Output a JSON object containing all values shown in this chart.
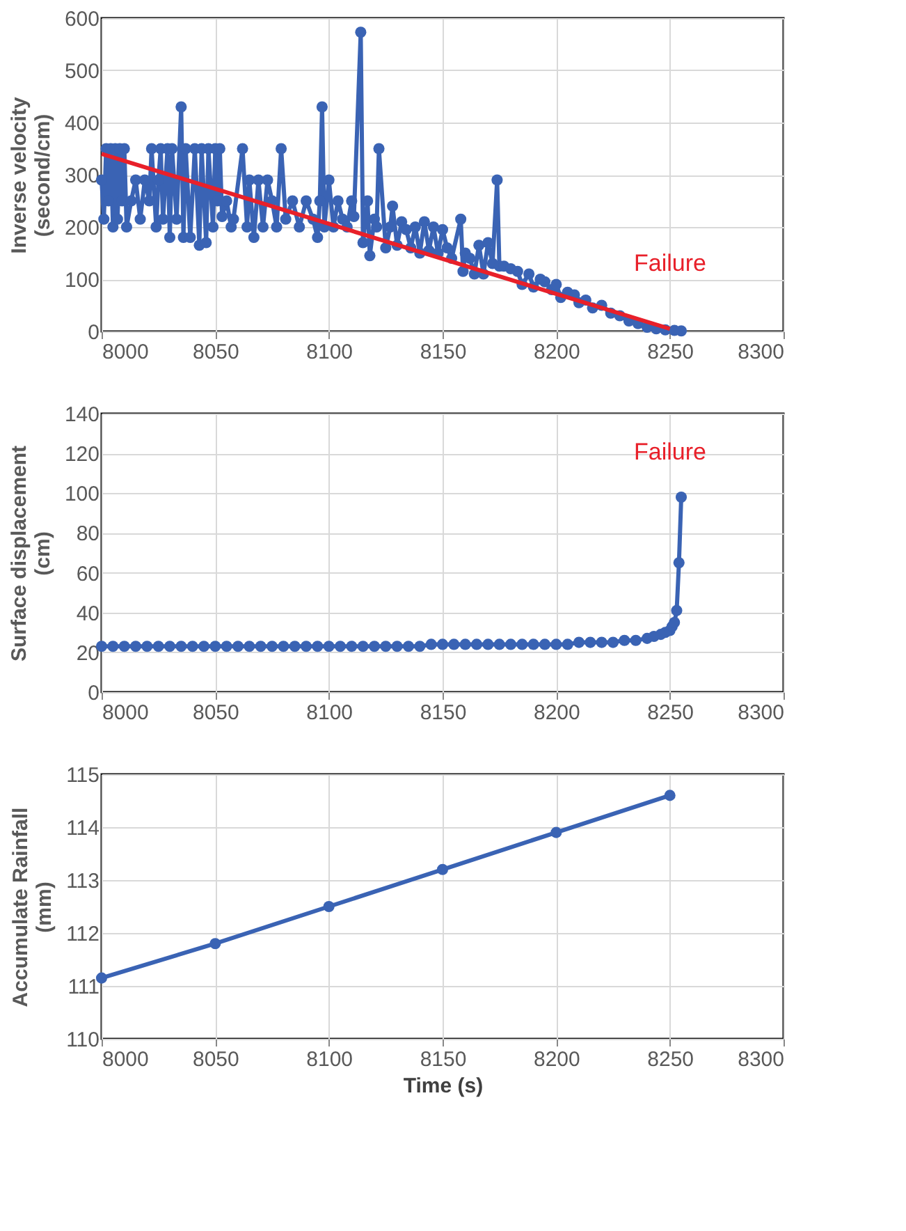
{
  "chart_data": [
    {
      "type": "line",
      "ylabel": "Inverse velocity\n(second/cm)",
      "xlim": [
        8000,
        8300
      ],
      "xticks": [
        8000,
        8050,
        8100,
        8150,
        8200,
        8250,
        8300
      ],
      "ylim": [
        0,
        600
      ],
      "yticks": [
        0,
        100,
        200,
        300,
        400,
        500,
        600
      ],
      "grid": true,
      "marker": "circle",
      "line_style": "solid",
      "annotations": [
        "Failure"
      ],
      "series": [
        {
          "color": "#3a63b4",
          "x": [
            8000,
            8001,
            8002,
            8003,
            8004,
            8005,
            8006,
            8007,
            8008,
            8009,
            8010,
            8011,
            8013,
            8015,
            8017,
            8019,
            8021,
            8022,
            8024,
            8025,
            8026,
            8027,
            8029,
            8030,
            8031,
            8033,
            8035,
            8036,
            8037,
            8039,
            8041,
            8043,
            8044,
            8046,
            8047,
            8049,
            8050,
            8051,
            8052,
            8053,
            8055,
            8057,
            8058,
            8062,
            8064,
            8065,
            8067,
            8069,
            8071,
            8073,
            8075,
            8077,
            8079,
            8081,
            8084,
            8087,
            8090,
            8093,
            8095,
            8096,
            8097,
            8098,
            8100,
            8102,
            8104,
            8106,
            8108,
            8110,
            8111,
            8114,
            8115,
            8117,
            8118,
            8120,
            8121,
            8122,
            8125,
            8127,
            8128,
            8130,
            8132,
            8134,
            8136,
            8138,
            8140,
            8142,
            8144,
            8146,
            8148,
            8150,
            8152,
            8154,
            8158,
            8159,
            8160,
            8162,
            8164,
            8166,
            8168,
            8170,
            8172,
            8174,
            8175,
            8177,
            8180,
            8183,
            8185,
            8188,
            8190,
            8193,
            8195,
            8198,
            8200,
            8202,
            8205,
            8208,
            8210,
            8213,
            8216,
            8220,
            8224,
            8228,
            8232,
            8236,
            8240,
            8244,
            8248,
            8252,
            8255
          ],
          "values": [
            290,
            215,
            350,
            250,
            350,
            200,
            350,
            215,
            350,
            250,
            350,
            200,
            250,
            290,
            215,
            290,
            250,
            350,
            200,
            290,
            350,
            215,
            350,
            180,
            350,
            215,
            430,
            180,
            350,
            180,
            350,
            165,
            350,
            170,
            350,
            200,
            350,
            250,
            350,
            220,
            250,
            200,
            215,
            350,
            200,
            290,
            180,
            290,
            200,
            290,
            250,
            200,
            350,
            215,
            250,
            200,
            250,
            215,
            180,
            250,
            430,
            200,
            290,
            200,
            250,
            215,
            200,
            250,
            220,
            573,
            170,
            250,
            145,
            215,
            200,
            350,
            160,
            200,
            240,
            165,
            210,
            195,
            160,
            200,
            150,
            210,
            155,
            200,
            150,
            195,
            160,
            140,
            215,
            115,
            150,
            140,
            110,
            165,
            110,
            170,
            130,
            290,
            125,
            125,
            120,
            115,
            90,
            110,
            85,
            100,
            95,
            80,
            90,
            65,
            75,
            70,
            55,
            60,
            45,
            50,
            35,
            30,
            20,
            15,
            8,
            5,
            3,
            2,
            1
          ]
        },
        {
          "type": "line",
          "color": "#e8202a",
          "marker": "none",
          "x": [
            8000,
            8250
          ],
          "values": [
            340,
            5
          ]
        }
      ]
    },
    {
      "type": "line",
      "ylabel": "Surface displacement\n(cm)",
      "xlim": [
        8000,
        8300
      ],
      "xticks": [
        8000,
        8050,
        8100,
        8150,
        8200,
        8250,
        8300
      ],
      "ylim": [
        0,
        140
      ],
      "yticks": [
        0,
        20,
        40,
        60,
        80,
        100,
        120,
        140
      ],
      "grid": true,
      "marker": "circle",
      "line_style": "solid",
      "annotations": [
        "Failure"
      ],
      "series": [
        {
          "color": "#3a63b4",
          "x": [
            8000,
            8005,
            8010,
            8015,
            8020,
            8025,
            8030,
            8035,
            8040,
            8045,
            8050,
            8055,
            8060,
            8065,
            8070,
            8075,
            8080,
            8085,
            8090,
            8095,
            8100,
            8105,
            8110,
            8115,
            8120,
            8125,
            8130,
            8135,
            8140,
            8145,
            8150,
            8155,
            8160,
            8165,
            8170,
            8175,
            8180,
            8185,
            8190,
            8195,
            8200,
            8205,
            8210,
            8215,
            8220,
            8225,
            8230,
            8235,
            8240,
            8243,
            8246,
            8248,
            8250,
            8251,
            8252,
            8253,
            8254,
            8255
          ],
          "values": [
            23,
            23,
            23,
            23,
            23,
            23,
            23,
            23,
            23,
            23,
            23,
            23,
            23,
            23,
            23,
            23,
            23,
            23,
            23,
            23,
            23,
            23,
            23,
            23,
            23,
            23,
            23,
            23,
            23,
            24,
            24,
            24,
            24,
            24,
            24,
            24,
            24,
            24,
            24,
            24,
            24,
            24,
            25,
            25,
            25,
            25,
            26,
            26,
            27,
            28,
            29,
            30,
            31,
            33,
            35,
            41,
            65,
            98
          ]
        }
      ]
    },
    {
      "type": "line",
      "xlabel": "Time (s)",
      "ylabel": "Accumulate Rainfall\n(mm)",
      "xlim": [
        8000,
        8300
      ],
      "xticks": [
        8000,
        8050,
        8100,
        8150,
        8200,
        8250,
        8300
      ],
      "ylim": [
        110,
        115
      ],
      "yticks": [
        110,
        111,
        112,
        113,
        114,
        115
      ],
      "grid": true,
      "marker": "circle",
      "line_style": "solid",
      "series": [
        {
          "color": "#3a63b4",
          "x": [
            8000,
            8050,
            8100,
            8150,
            8200,
            8250
          ],
          "values": [
            111.15,
            111.8,
            112.5,
            113.2,
            113.9,
            114.6
          ]
        }
      ]
    }
  ]
}
